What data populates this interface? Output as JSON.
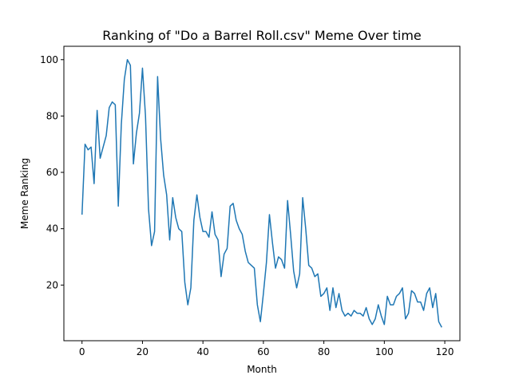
{
  "chart_data": {
    "type": "line",
    "title": "Ranking of \"Do a Barrel Roll.csv\" Meme Over time",
    "xlabel": "Month",
    "ylabel": "Meme Ranking",
    "xlim": [
      -6,
      125
    ],
    "ylim": [
      0.25,
      104.75
    ],
    "x_ticks": [
      0,
      20,
      40,
      60,
      80,
      100,
      120
    ],
    "y_ticks": [
      20,
      40,
      60,
      80,
      100
    ],
    "grid": false,
    "legend": "none",
    "series": [
      {
        "color": "#1f77b4",
        "x": [
          0,
          1,
          2,
          3,
          4,
          5,
          6,
          7,
          8,
          9,
          10,
          11,
          12,
          13,
          14,
          15,
          16,
          17,
          18,
          19,
          20,
          21,
          22,
          23,
          24,
          25,
          26,
          27,
          28,
          29,
          30,
          31,
          32,
          33,
          34,
          35,
          36,
          37,
          38,
          39,
          40,
          41,
          42,
          43,
          44,
          45,
          46,
          47,
          48,
          49,
          50,
          51,
          52,
          53,
          54,
          55,
          56,
          57,
          58,
          59,
          60,
          61,
          62,
          63,
          64,
          65,
          66,
          67,
          68,
          69,
          70,
          71,
          72,
          73,
          74,
          75,
          76,
          77,
          78,
          79,
          80,
          81,
          82,
          83,
          84,
          85,
          86,
          87,
          88,
          89,
          90,
          91,
          92,
          93,
          94,
          95,
          96,
          97,
          98,
          99,
          100,
          101,
          102,
          103,
          104,
          105,
          106,
          107,
          108,
          109,
          110,
          111,
          112,
          113,
          114,
          115,
          116,
          117,
          118,
          119
        ],
        "values": [
          45,
          70,
          68,
          69,
          56,
          82,
          65,
          69,
          73,
          83,
          85,
          84,
          48,
          77,
          93,
          100,
          98,
          63,
          74,
          81,
          97,
          80,
          47,
          34,
          39,
          94,
          72,
          59,
          52,
          36,
          51,
          44,
          40,
          39,
          21,
          13,
          19,
          43,
          52,
          44,
          39,
          39,
          37,
          46,
          38,
          36,
          23,
          31,
          33,
          48,
          49,
          43,
          40,
          38,
          32,
          28,
          27,
          26,
          13,
          7,
          17,
          28,
          45,
          35,
          26,
          30,
          29,
          26,
          50,
          38,
          25,
          19,
          24,
          51,
          40,
          27,
          26,
          23,
          24,
          16,
          17,
          19,
          11,
          19,
          12,
          17,
          11,
          9,
          10,
          9,
          11,
          10,
          10,
          9,
          12,
          8,
          6,
          8,
          13,
          9,
          6,
          16,
          13,
          13,
          16,
          17,
          19,
          8,
          10,
          18,
          17,
          14,
          14,
          11,
          17,
          19,
          12,
          17,
          7,
          5
        ]
      }
    ]
  }
}
